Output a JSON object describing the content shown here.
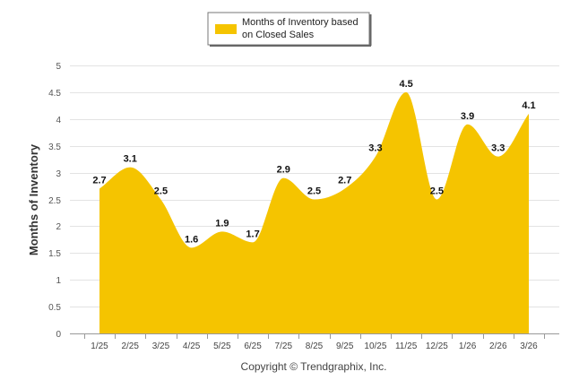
{
  "chart_data": {
    "type": "area",
    "categories": [
      "1/25",
      "2/25",
      "3/25",
      "4/25",
      "5/25",
      "6/25",
      "7/25",
      "8/25",
      "9/25",
      "10/25",
      "11/25",
      "12/25",
      "1/26",
      "2/26",
      "3/26"
    ],
    "series": [
      {
        "name": "Months of Inventory based on Closed Sales",
        "values": [
          2.7,
          3.1,
          2.5,
          1.6,
          1.9,
          1.7,
          2.9,
          2.5,
          2.7,
          3.3,
          4.5,
          2.5,
          3.9,
          3.3,
          4.1
        ],
        "color": "#f5c400"
      }
    ],
    "ylabel": "Months of Inventory",
    "xlabel": "",
    "ylim": [
      0,
      5
    ],
    "yticks": [
      "0",
      "0.5",
      "1",
      "1.5",
      "2",
      "2.5",
      "3",
      "3.5",
      "4",
      "4.5",
      "5"
    ],
    "grid": true,
    "legend_position": "top-center",
    "credit": "Copyright © Trendgraphix, Inc."
  }
}
